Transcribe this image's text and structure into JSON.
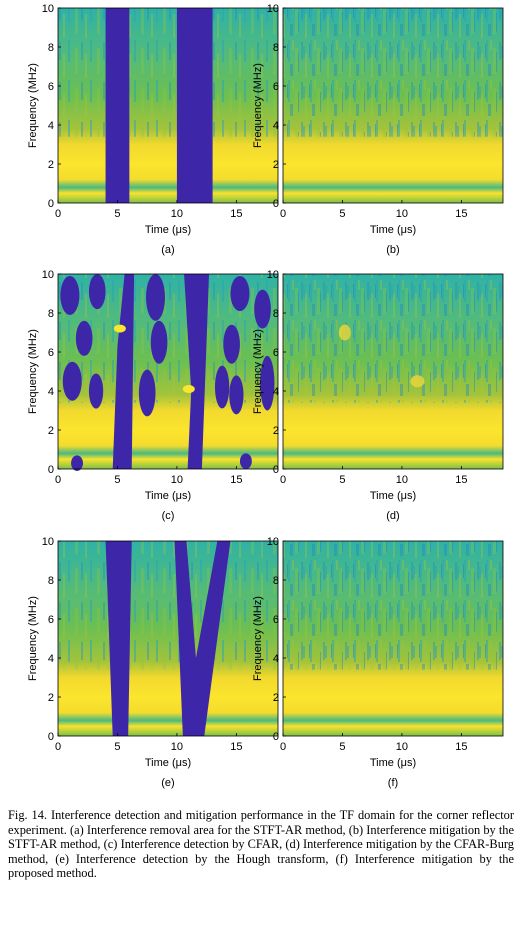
{
  "figure": {
    "caption": "Fig. 14.  Interference detection and mitigation performance in the TF domain for the corner reflector experiment. (a) Interference removal area for the STFT-AR method, (b) Interference mitigation by the STFT-AR method, (c) Interference detection by CFAR, (d) Interference mitigation by the CFAR-Burg method, (e) Interference detection by the Hough transform, (f) Interference mitigation by the proposed method."
  },
  "colors": {
    "low": "#3e26a8",
    "cyan": "#33b7a0",
    "green": "#73bf4a",
    "high": "#f9e62f",
    "axis": "#000000"
  },
  "chart_data": [
    {
      "type": "heatmap",
      "panel_label": "(a)",
      "xlabel": "Time (μs)",
      "ylabel": "Frequency (MHz)",
      "xlim": [
        0,
        18.5
      ],
      "ylim": [
        0,
        10
      ],
      "xticks": [
        0,
        5,
        10,
        15
      ],
      "yticks": [
        0,
        2,
        4,
        6,
        8,
        10
      ],
      "removed_regions": [
        {
          "t_start": 4,
          "t_end": 6
        },
        {
          "t_start": 10,
          "t_end": 13
        }
      ]
    },
    {
      "type": "heatmap",
      "panel_label": "(b)",
      "xlabel": "Time (μs)",
      "ylabel": "Frequency (MHz)",
      "xlim": [
        0,
        18.5
      ],
      "ylim": [
        0,
        10
      ],
      "xticks": [
        0,
        5,
        10,
        15
      ],
      "yticks": [
        0,
        2,
        4,
        6,
        8,
        10
      ],
      "removed_regions": []
    },
    {
      "type": "heatmap",
      "panel_label": "(c)",
      "xlabel": "Time (μs)",
      "ylabel": "Frequency (MHz)",
      "xlim": [
        0,
        18.5
      ],
      "ylim": [
        0,
        10
      ],
      "xticks": [
        0,
        5,
        10,
        15
      ],
      "yticks": [
        0,
        2,
        4,
        6,
        8,
        10
      ],
      "removed_regions": [
        {
          "t_start": 4.5,
          "t_end": 6.2
        },
        {
          "t_start": 10.8,
          "t_end": 12.2
        }
      ]
    },
    {
      "type": "heatmap",
      "panel_label": "(d)",
      "xlabel": "Time (μs)",
      "ylabel": "Frequency (MHz)",
      "xlim": [
        0,
        18.5
      ],
      "ylim": [
        0,
        10
      ],
      "xticks": [
        0,
        5,
        10,
        15
      ],
      "yticks": [
        0,
        2,
        4,
        6,
        8,
        10
      ],
      "removed_regions": []
    },
    {
      "type": "heatmap",
      "panel_label": "(e)",
      "xlabel": "Time (μs)",
      "ylabel": "Frequency (MHz)",
      "xlim": [
        0,
        18.5
      ],
      "ylim": [
        0,
        10
      ],
      "xticks": [
        0,
        5,
        10,
        15
      ],
      "yticks": [
        0,
        2,
        4,
        6,
        8,
        10
      ],
      "removed_regions": [
        {
          "t_start": 4.5,
          "t_end": 6
        },
        {
          "t_start": 10.5,
          "t_end": 12.3
        }
      ]
    },
    {
      "type": "heatmap",
      "panel_label": "(f)",
      "xlabel": "Time (μs)",
      "ylabel": "Frequency (MHz)",
      "xlim": [
        0,
        18.5
      ],
      "ylim": [
        0,
        10
      ],
      "xticks": [
        0,
        5,
        10,
        15
      ],
      "yticks": [
        0,
        2,
        4,
        6,
        8,
        10
      ],
      "removed_regions": []
    }
  ]
}
